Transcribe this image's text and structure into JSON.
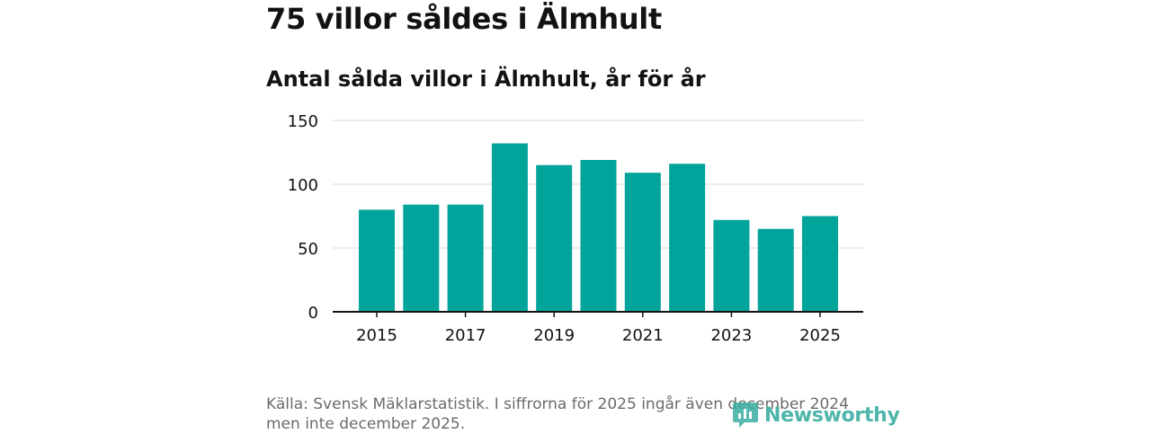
{
  "header": {
    "title": "75 villor såldes i Älmhult",
    "subtitle": "Antal sålda villor i Älmhult, år för år"
  },
  "chart_data": {
    "type": "bar",
    "title": "75 villor såldes i Älmhult",
    "subtitle": "Antal sålda villor i Älmhult, år för år",
    "categories": [
      "2015",
      "2016",
      "2017",
      "2018",
      "2019",
      "2020",
      "2021",
      "2022",
      "2023",
      "2024",
      "2025"
    ],
    "values": [
      80,
      84,
      84,
      132,
      115,
      119,
      109,
      116,
      72,
      65,
      75
    ],
    "xtick_labels": [
      "2015",
      "2017",
      "2019",
      "2021",
      "2023",
      "2025"
    ],
    "ytick_labels": [
      "0",
      "50",
      "100",
      "150"
    ],
    "yticks": [
      0,
      50,
      100,
      150
    ],
    "ylim": [
      0,
      150
    ],
    "xlabel": "",
    "ylabel": "",
    "grid": true,
    "bar_color": "#00a49a",
    "grid_color": "#d9d9d9",
    "axis_color": "#121212"
  },
  "footer": {
    "source_line1": "Källa: Svensk Mäklarstatistik. I siffrorna för 2025 ingår även december 2024",
    "source_line2": "men inte december 2025.",
    "logo_text": "Newsworthy"
  }
}
